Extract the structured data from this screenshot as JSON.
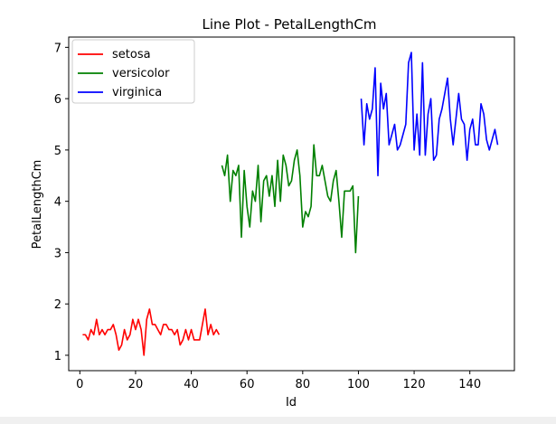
{
  "chart_data": {
    "type": "line",
    "title": "Line Plot - PetalLengthCm",
    "xlabel": "Id",
    "ylabel": "PetalLengthCm",
    "xlim": [
      -4,
      156
    ],
    "ylim": [
      0.7,
      7.2
    ],
    "xticks": [
      0,
      20,
      40,
      60,
      80,
      100,
      120,
      140
    ],
    "yticks": [
      1,
      2,
      3,
      4,
      5,
      6,
      7
    ],
    "grid": false,
    "legend": "top-left",
    "series": [
      {
        "name": "setosa",
        "color": "#ff0000",
        "x": [
          1,
          2,
          3,
          4,
          5,
          6,
          7,
          8,
          9,
          10,
          11,
          12,
          13,
          14,
          15,
          16,
          17,
          18,
          19,
          20,
          21,
          22,
          23,
          24,
          25,
          26,
          27,
          28,
          29,
          30,
          31,
          32,
          33,
          34,
          35,
          36,
          37,
          38,
          39,
          40,
          41,
          42,
          43,
          44,
          45,
          46,
          47,
          48,
          49,
          50
        ],
        "y": [
          1.4,
          1.4,
          1.3,
          1.5,
          1.4,
          1.7,
          1.4,
          1.5,
          1.4,
          1.5,
          1.5,
          1.6,
          1.4,
          1.1,
          1.2,
          1.5,
          1.3,
          1.4,
          1.7,
          1.5,
          1.7,
          1.5,
          1.0,
          1.7,
          1.9,
          1.6,
          1.6,
          1.5,
          1.4,
          1.6,
          1.6,
          1.5,
          1.5,
          1.4,
          1.5,
          1.2,
          1.3,
          1.5,
          1.3,
          1.5,
          1.3,
          1.3,
          1.3,
          1.6,
          1.9,
          1.4,
          1.6,
          1.4,
          1.5,
          1.4
        ]
      },
      {
        "name": "versicolor",
        "color": "#008000",
        "x": [
          51,
          52,
          53,
          54,
          55,
          56,
          57,
          58,
          59,
          60,
          61,
          62,
          63,
          64,
          65,
          66,
          67,
          68,
          69,
          70,
          71,
          72,
          73,
          74,
          75,
          76,
          77,
          78,
          79,
          80,
          81,
          82,
          83,
          84,
          85,
          86,
          87,
          88,
          89,
          90,
          91,
          92,
          93,
          94,
          95,
          96,
          97,
          98,
          99,
          100
        ],
        "y": [
          4.7,
          4.5,
          4.9,
          4.0,
          4.6,
          4.5,
          4.7,
          3.3,
          4.6,
          3.9,
          3.5,
          4.2,
          4.0,
          4.7,
          3.6,
          4.4,
          4.5,
          4.1,
          4.5,
          3.9,
          4.8,
          4.0,
          4.9,
          4.7,
          4.3,
          4.4,
          4.8,
          5.0,
          4.5,
          3.5,
          3.8,
          3.7,
          3.9,
          5.1,
          4.5,
          4.5,
          4.7,
          4.4,
          4.1,
          4.0,
          4.4,
          4.6,
          4.0,
          3.3,
          4.2,
          4.2,
          4.2,
          4.3,
          3.0,
          4.1
        ]
      },
      {
        "name": "virginica",
        "color": "#0000ff",
        "x": [
          101,
          102,
          103,
          104,
          105,
          106,
          107,
          108,
          109,
          110,
          111,
          112,
          113,
          114,
          115,
          116,
          117,
          118,
          119,
          120,
          121,
          122,
          123,
          124,
          125,
          126,
          127,
          128,
          129,
          130,
          131,
          132,
          133,
          134,
          135,
          136,
          137,
          138,
          139,
          140,
          141,
          142,
          143,
          144,
          145,
          146,
          147,
          148,
          149,
          150
        ],
        "y": [
          6.0,
          5.1,
          5.9,
          5.6,
          5.8,
          6.6,
          4.5,
          6.3,
          5.8,
          6.1,
          5.1,
          5.3,
          5.5,
          5.0,
          5.1,
          5.3,
          5.5,
          6.7,
          6.9,
          5.0,
          5.7,
          4.9,
          6.7,
          4.9,
          5.7,
          6.0,
          4.8,
          4.9,
          5.6,
          5.8,
          6.1,
          6.4,
          5.6,
          5.1,
          5.6,
          6.1,
          5.6,
          5.5,
          4.8,
          5.4,
          5.6,
          5.1,
          5.1,
          5.9,
          5.7,
          5.2,
          5.0,
          5.2,
          5.4,
          5.1
        ]
      }
    ]
  }
}
